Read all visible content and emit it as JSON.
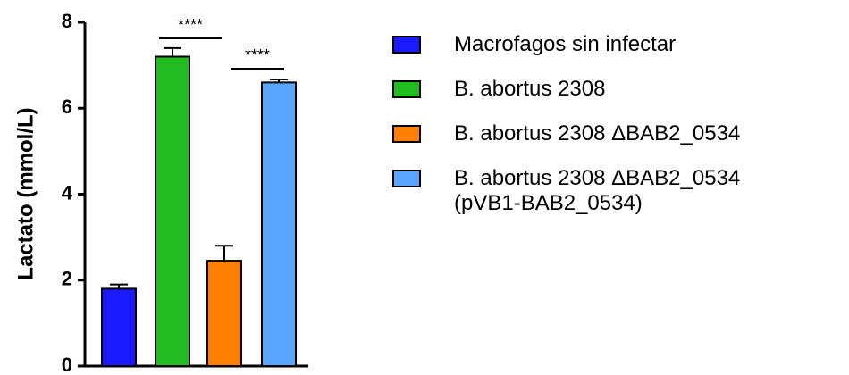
{
  "chart_data": {
    "type": "bar",
    "y_label": "Lactato (mmol/L)",
    "ylim": [
      0,
      8
    ],
    "yticks": [
      0,
      2,
      4,
      6,
      8
    ],
    "series": [
      {
        "name": "Macrofagos sin infectar",
        "color": "#1a1aff",
        "values": [
          1.8
        ],
        "errors": [
          0.1
        ]
      },
      {
        "name": "B. abortus 2308",
        "color": "#22bb22",
        "values": [
          7.2
        ],
        "errors": [
          0.2
        ]
      },
      {
        "name": "B. abortus 2308 ΔBAB2_0534",
        "color": "#ff8000",
        "values": [
          2.45
        ],
        "errors": [
          0.35
        ]
      },
      {
        "name": "B. abortus 2308 ΔBAB2_0534\n(pVB1-BAB2_0534)",
        "color": "#5aa5ff",
        "values": [
          6.6
        ],
        "errors": [
          0.07
        ]
      }
    ],
    "annotations": [
      "****",
      "****"
    ]
  }
}
